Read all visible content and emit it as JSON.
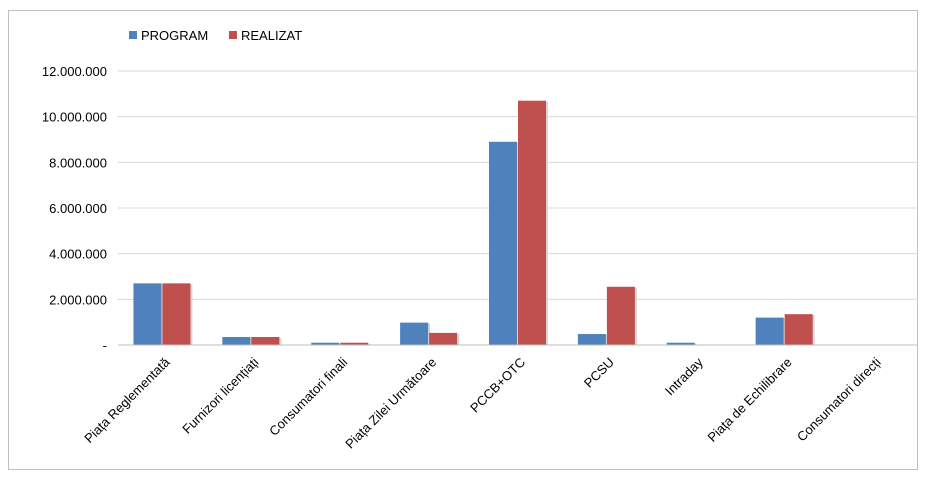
{
  "chart_data": {
    "type": "bar",
    "categories": [
      "Piața Reglementată",
      "Furnizori licențiați",
      "Consumatori finali",
      "Piața Zilei Următoare",
      "PCCB+OTC",
      "PCSU",
      "Intraday",
      "Piața de Echilibrare",
      "Consumatori direcți"
    ],
    "series": [
      {
        "name": "PROGRAM",
        "color": "#4f81bd",
        "values": [
          2700000,
          350000,
          100000,
          980000,
          8900000,
          480000,
          100000,
          1200000,
          0
        ]
      },
      {
        "name": "REALIZAT",
        "color": "#c0504d",
        "values": [
          2700000,
          350000,
          100000,
          530000,
          10700000,
          2550000,
          0,
          1350000,
          0
        ]
      }
    ],
    "yticks": [
      "-",
      "2.000.000",
      "4.000.000",
      "6.000.000",
      "8.000.000",
      "10.000.000",
      "12.000.000"
    ],
    "ylim": [
      0,
      12000000
    ],
    "grid": true,
    "legend_position": "top-left"
  }
}
